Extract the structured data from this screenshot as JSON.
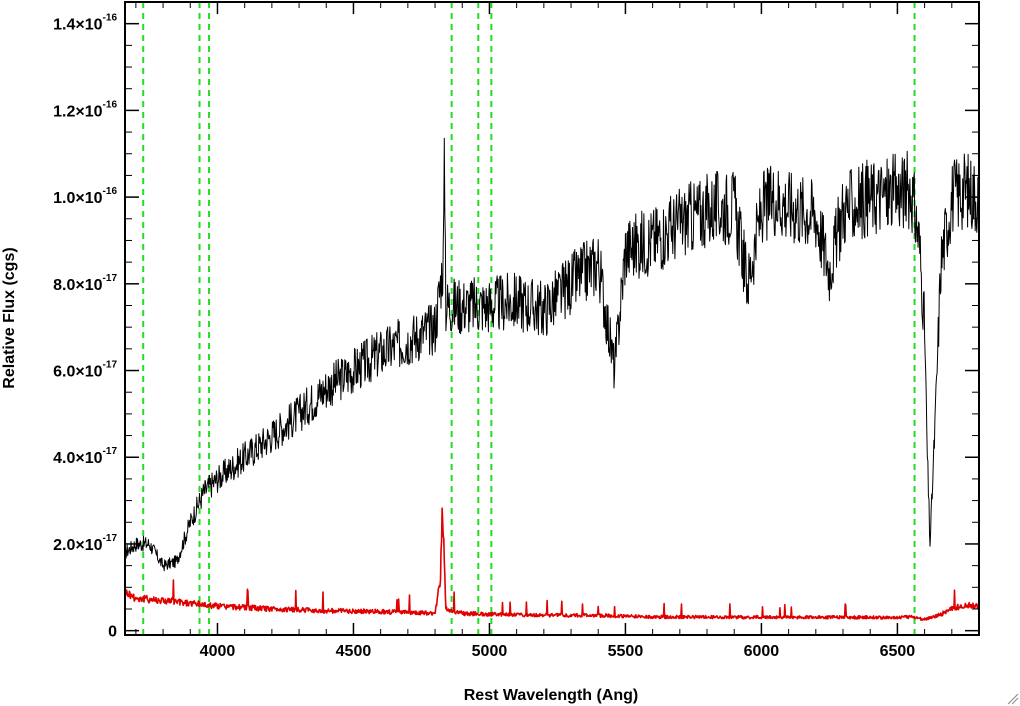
{
  "chart_data": {
    "type": "line",
    "xlabel": "Rest Wavelength (Ang)",
    "ylabel": "Relative Flux (cgs)",
    "xlim": [
      3660,
      6800
    ],
    "ylim": [
      -1e-18,
      1.45e-16
    ],
    "x_ticks": [
      {
        "value": 4000,
        "label": "4000"
      },
      {
        "value": 4500,
        "label": "4500"
      },
      {
        "value": 5000,
        "label": "5000"
      },
      {
        "value": 5500,
        "label": "5500"
      },
      {
        "value": 6000,
        "label": "6000"
      },
      {
        "value": 6500,
        "label": "6500"
      }
    ],
    "y_ticks": [
      {
        "value": 0,
        "mant": "0",
        "exp": ""
      },
      {
        "value": 2e-17,
        "mant": "2.0×10",
        "exp": "-17"
      },
      {
        "value": 4e-17,
        "mant": "4.0×10",
        "exp": "-17"
      },
      {
        "value": 6e-17,
        "mant": "6.0×10",
        "exp": "-17"
      },
      {
        "value": 8e-17,
        "mant": "8.0×10",
        "exp": "-17"
      },
      {
        "value": 1e-16,
        "mant": "1.0×10",
        "exp": "-16"
      },
      {
        "value": 1.2e-16,
        "mant": "1.2×10",
        "exp": "-16"
      },
      {
        "value": 1.4e-16,
        "mant": "1.4×10",
        "exp": "-16"
      }
    ],
    "reference_lines": [
      3727,
      3934,
      3969,
      4861,
      4959,
      5007,
      6563
    ],
    "grid": false,
    "series": [
      {
        "color": "#000000",
        "x": [
          3660,
          3700,
          3750,
          3800,
          3850,
          3900,
          3950,
          4000,
          4100,
          4200,
          4300,
          4400,
          4500,
          4600,
          4700,
          4800,
          4830,
          4835,
          4840,
          4900,
          5000,
          5100,
          5200,
          5300,
          5400,
          5460,
          5500,
          5600,
          5700,
          5800,
          5900,
          5950,
          6000,
          6050,
          6100,
          6200,
          6250,
          6300,
          6400,
          6500,
          6550,
          6580,
          6600,
          6610,
          6620,
          6640,
          6660,
          6700,
          6750,
          6800
        ],
        "y": [
          1.8e-17,
          2e-17,
          2e-17,
          1.5e-17,
          1.6e-17,
          2.5e-17,
          3.2e-17,
          3.5e-17,
          4e-17,
          4.5e-17,
          5e-17,
          5.6e-17,
          6e-17,
          6.4e-17,
          6.7e-17,
          7e-17,
          8.5e-17,
          1.1e-16,
          7.5e-17,
          7.5e-17,
          7.5e-17,
          7.6e-17,
          7.4e-17,
          8e-17,
          8.5e-17,
          6e-17,
          8.8e-17,
          9e-17,
          9.4e-17,
          9.7e-17,
          9.8e-17,
          8e-17,
          9.7e-17,
          1e-16,
          9.8e-17,
          9.6e-17,
          8.3e-17,
          9.7e-17,
          1e-16,
          1.01e-16,
          1.02e-16,
          9e-17,
          7e-17,
          4e-17,
          2e-17,
          5e-17,
          8.5e-17,
          1e-16,
          1.02e-16,
          1e-16
        ]
      },
      {
        "color": "#e00000",
        "x": [
          3660,
          3700,
          3800,
          3900,
          4000,
          4200,
          4400,
          4500,
          4600,
          4800,
          4820,
          4825,
          4830,
          4840,
          4900,
          5000,
          5200,
          5400,
          5600,
          5800,
          6000,
          6200,
          6400,
          6500,
          6550,
          6600,
          6650,
          6700,
          6750,
          6800
        ],
        "y": [
          9e-18,
          7.5e-18,
          7e-18,
          6.3e-18,
          5.7e-18,
          5e-18,
          4.6e-18,
          4.5e-18,
          4.4e-18,
          4e-18,
          1.2e-17,
          2.6e-17,
          2.4e-17,
          5e-18,
          4e-18,
          3.8e-18,
          3.6e-18,
          3.5e-18,
          3.2e-18,
          3.1e-18,
          3.1e-18,
          3.1e-18,
          3.1e-18,
          3e-18,
          3.2e-18,
          2.6e-18,
          3.5e-18,
          5e-18,
          6e-18,
          5.5e-18
        ]
      }
    ]
  }
}
